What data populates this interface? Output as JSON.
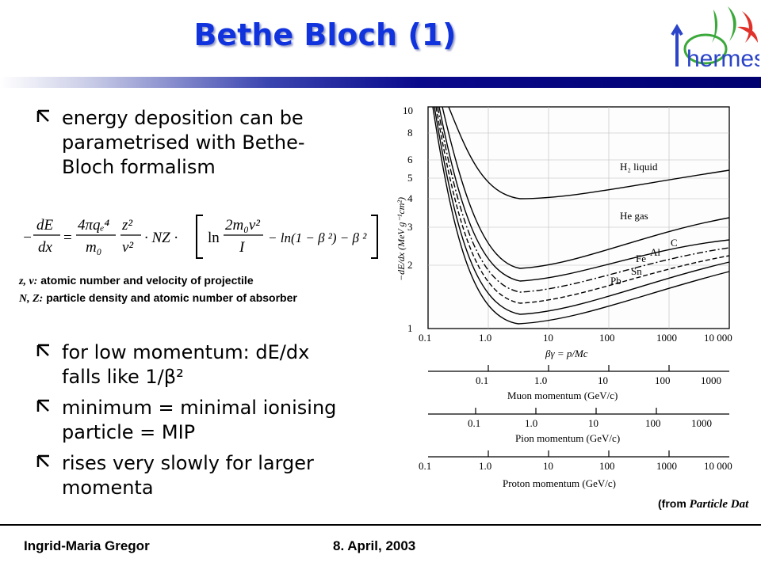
{
  "slide": {
    "title": "Bethe Bloch (1)",
    "logo_text": "hermes"
  },
  "bullets": [
    "energy deposition can be parametrised with Bethe-Bloch formalism",
    "for low momentum: dE/dx falls like 1/β²",
    "minimum = minimal ionising particle = MIP",
    "rises very slowly for larger momenta"
  ],
  "formula": {
    "lhs_num": "dE",
    "lhs_den": "dx",
    "frac1_num": "4πqₑ⁴",
    "frac1_den": "m₀",
    "frac2_num": "z²",
    "frac2_den": "v²",
    "nz": "· NZ ·",
    "ln1": "ln",
    "frac3_num": "2m₀v²",
    "frac3_den": "I",
    "ln2_tail": "− ln(1 − β ²) − β ²"
  },
  "legend": [
    {
      "sym": "z, v:",
      "text": "atomic number and velocity of projectile"
    },
    {
      "sym": "N, Z:",
      "text": "particle density and atomic number of absorber"
    }
  ],
  "graph": {
    "y_label": "−dE/dx (MeV g⁻¹cm²)",
    "y_ticks": [
      "1",
      "2",
      "3",
      "4",
      "5",
      "6",
      "8",
      "10"
    ],
    "x_ticks": [
      "0.1",
      "1.0",
      "10",
      "100",
      "1000",
      "10 000"
    ],
    "x_label": "βγ = p/Mc",
    "curve_labels": [
      "H₂ liquid",
      "He gas",
      "C",
      "Al",
      "Fe",
      "Sn",
      "Pb"
    ],
    "scales": [
      {
        "ticks": [
          "0.1",
          "1.0",
          "10",
          "100",
          "1000"
        ],
        "label": "Muon momentum (GeV/c)"
      },
      {
        "ticks": [
          "0.1",
          "1.0",
          "10",
          "100",
          "1000"
        ],
        "label": "Pion momentum (GeV/c)"
      },
      {
        "ticks": [
          "0.1",
          "1.0",
          "10",
          "100",
          "1000",
          "10 000"
        ],
        "label": "Proton momentum (GeV/c)"
      }
    ]
  },
  "credit": {
    "prefix": "(from",
    "source": "Particle Dat"
  },
  "footer": {
    "author": "Ingrid-Maria Gregor",
    "date": "8. April, 2003"
  },
  "colors": {
    "title": "#1133dd",
    "bar": "#000070",
    "logo_red": "#e0322a",
    "logo_green": "#3aa93a",
    "logo_blue": "#2b44c8"
  }
}
